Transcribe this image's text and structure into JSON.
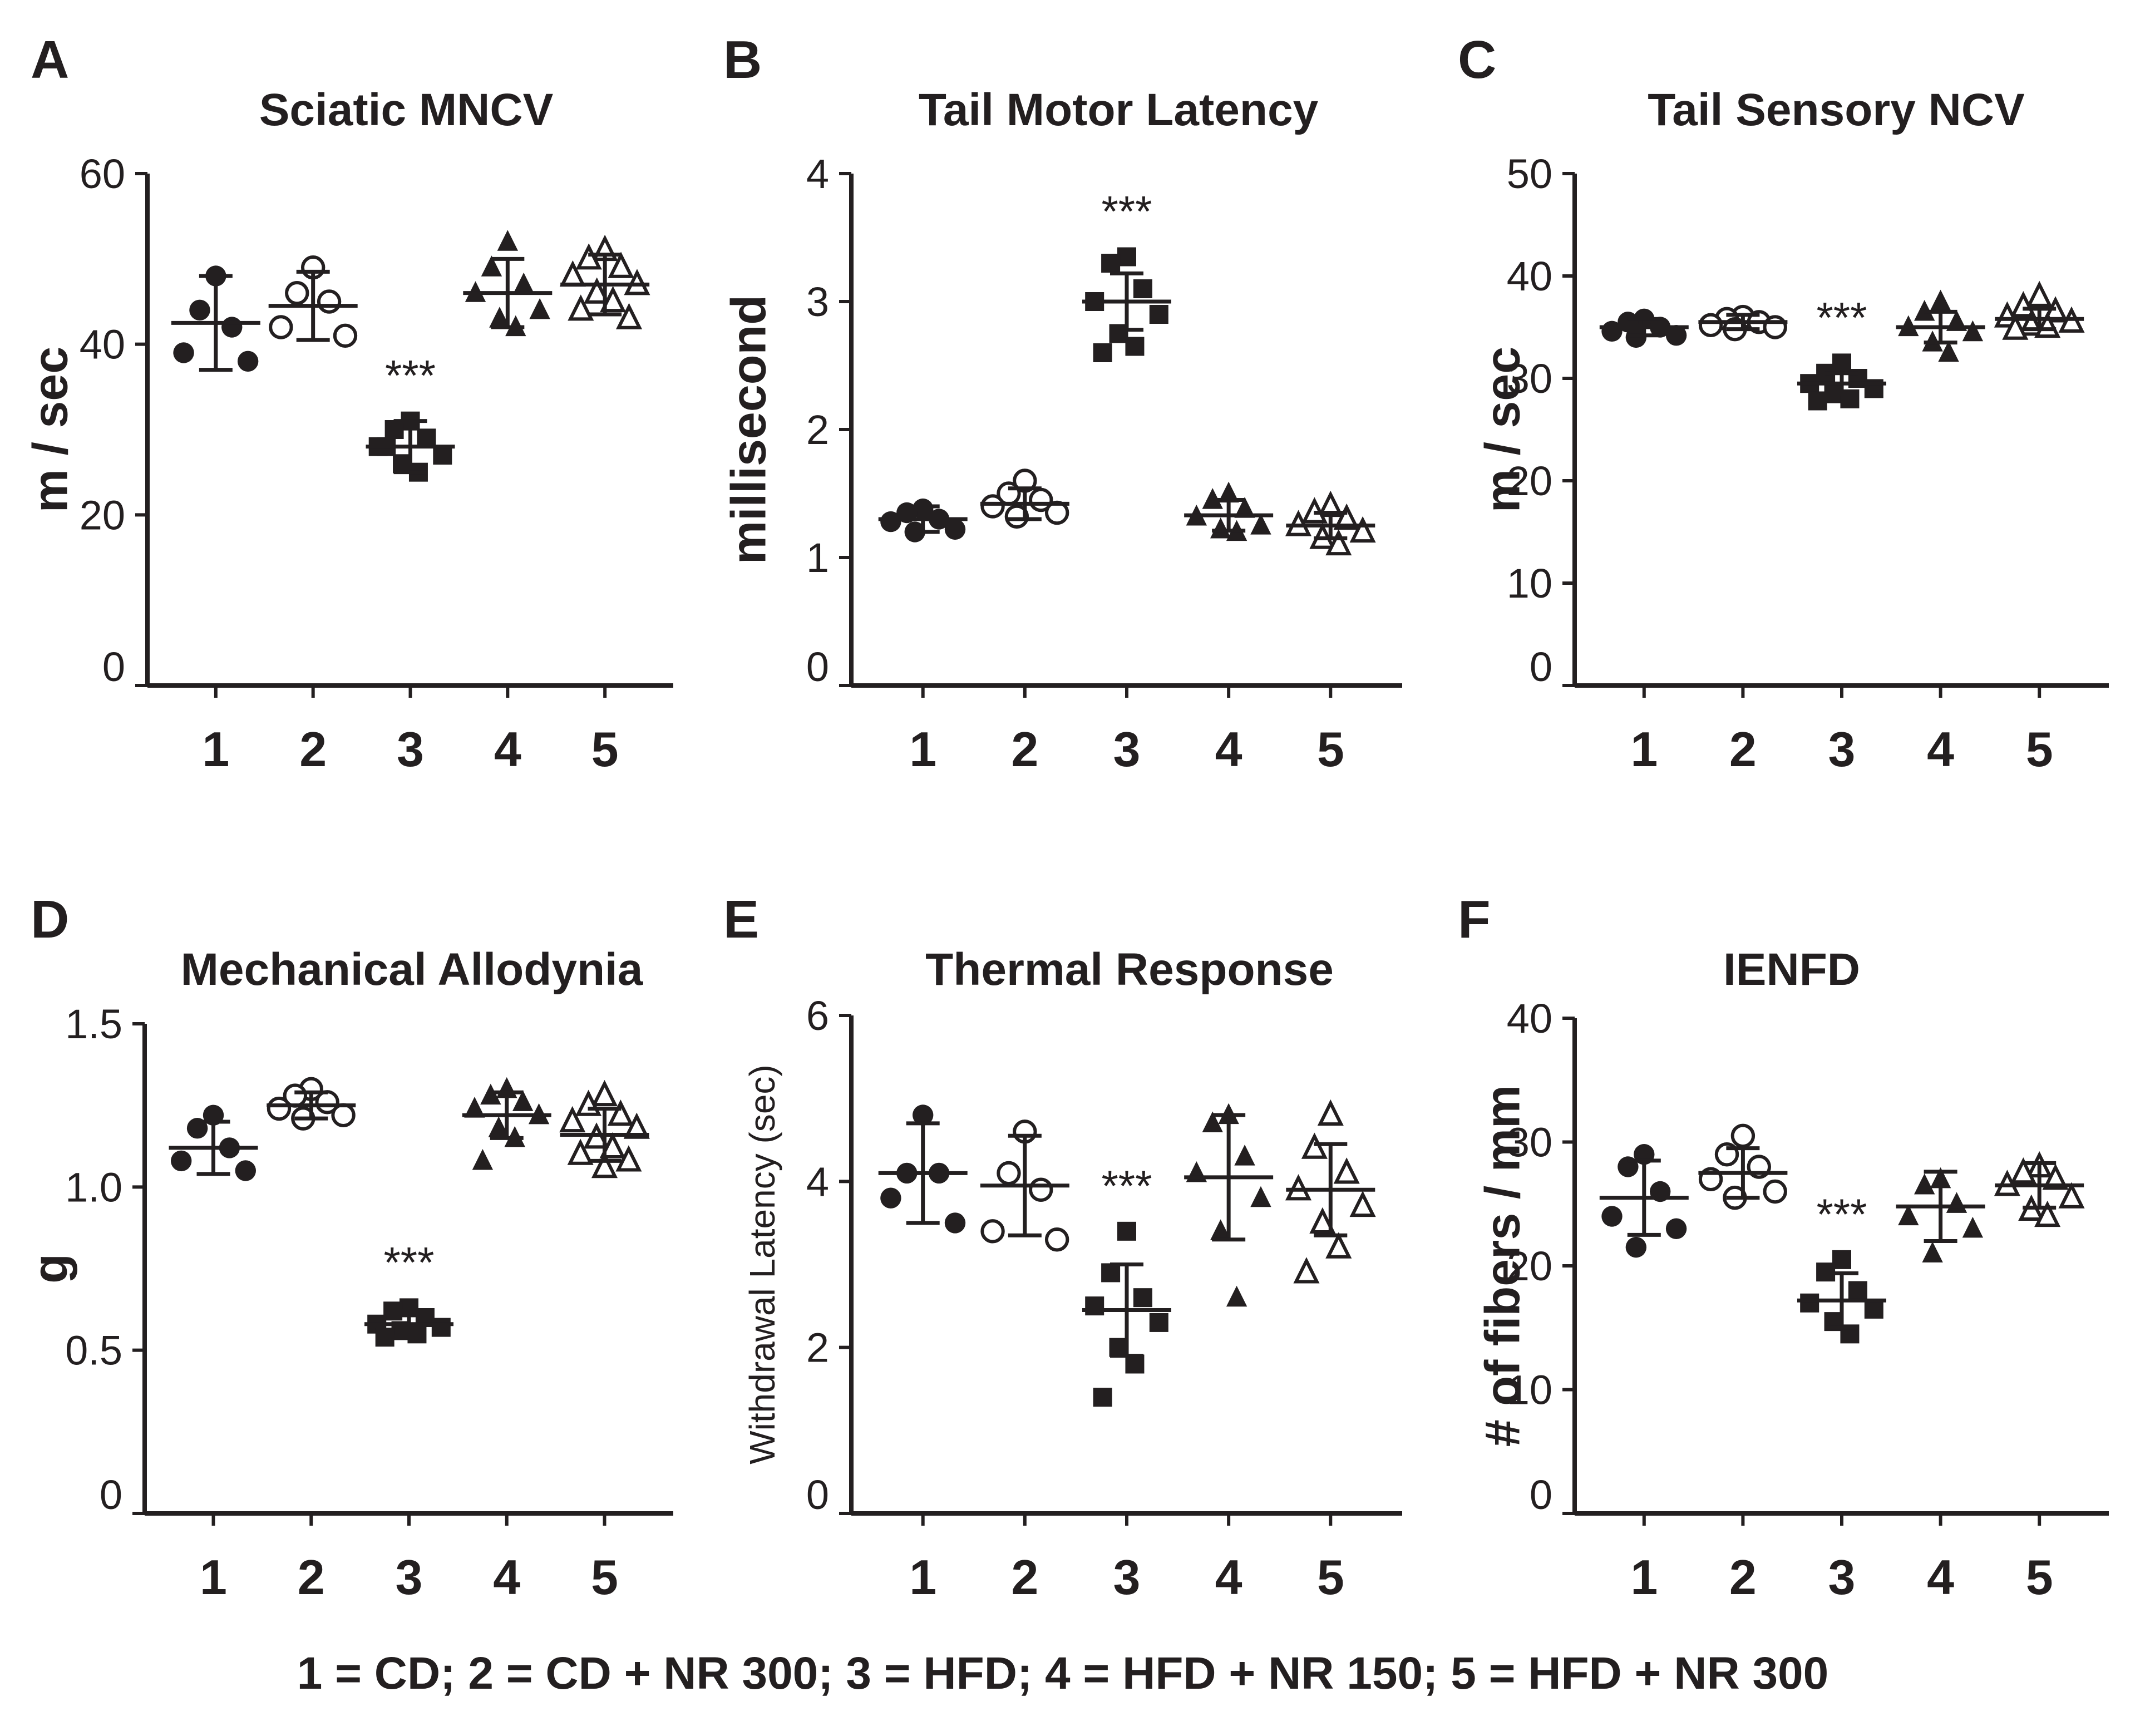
{
  "legend": "1 = CD; 2 = CD + NR 300; 3 = HFD; 4 = HFD + NR 150; 5 = HFD + NR 300",
  "chart_data": [
    {
      "id": "A",
      "type": "scatter",
      "letter": "A",
      "title": "Sciatic MNCV",
      "ylabel": "m / sec",
      "ylim": [
        0,
        60
      ],
      "yticks": [
        0,
        20,
        40,
        60
      ],
      "categories": [
        "1",
        "2",
        "3",
        "4",
        "5"
      ],
      "markers": [
        "circle",
        "circle-open",
        "square",
        "triangle",
        "triangle-open"
      ],
      "significance": {
        "group": "3",
        "label": "***"
      },
      "groups": [
        {
          "mean": 42.5,
          "sd": 5.5,
          "points": [
            48,
            44,
            42,
            39,
            38
          ]
        },
        {
          "mean": 44.5,
          "sd": 4.0,
          "points": [
            49,
            46,
            45,
            42,
            41
          ]
        },
        {
          "mean": 28.0,
          "sd": 3.0,
          "points": [
            31,
            30,
            29,
            28,
            27,
            26,
            25,
            28
          ]
        },
        {
          "mean": 46.0,
          "sd": 4.0,
          "points": [
            52,
            49,
            47,
            46,
            44,
            43,
            42
          ]
        },
        {
          "mean": 47.0,
          "sd": 3.5,
          "points": [
            51,
            50,
            49,
            48,
            47,
            46,
            45,
            44,
            43
          ]
        }
      ]
    },
    {
      "id": "B",
      "type": "scatter",
      "letter": "B",
      "title": "Tail Motor Latency",
      "ylabel": "millisecond",
      "ylim": [
        0,
        4
      ],
      "yticks": [
        0,
        1,
        2,
        3,
        4
      ],
      "categories": [
        "1",
        "2",
        "3",
        "4",
        "5"
      ],
      "markers": [
        "circle",
        "circle-open",
        "square",
        "triangle",
        "triangle-open"
      ],
      "significance": {
        "group": "3",
        "label": "***"
      },
      "groups": [
        {
          "mean": 1.3,
          "sd": 0.1,
          "points": [
            1.38,
            1.35,
            1.3,
            1.28,
            1.22,
            1.2
          ]
        },
        {
          "mean": 1.42,
          "sd": 0.12,
          "points": [
            1.6,
            1.5,
            1.45,
            1.4,
            1.35,
            1.32
          ]
        },
        {
          "mean": 3.0,
          "sd": 0.22,
          "points": [
            3.35,
            3.3,
            3.1,
            3.0,
            2.9,
            2.75,
            2.65,
            2.6
          ]
        },
        {
          "mean": 1.33,
          "sd": 0.12,
          "points": [
            1.5,
            1.45,
            1.38,
            1.32,
            1.25,
            1.22,
            1.2
          ]
        },
        {
          "mean": 1.25,
          "sd": 0.1,
          "points": [
            1.4,
            1.35,
            1.3,
            1.25,
            1.2,
            1.15,
            1.1
          ]
        }
      ]
    },
    {
      "id": "C",
      "type": "scatter",
      "letter": "C",
      "title": "Tail Sensory NCV",
      "ylabel": "m / sec",
      "ylim": [
        0,
        50
      ],
      "yticks": [
        0,
        10,
        20,
        30,
        40,
        50
      ],
      "categories": [
        "1",
        "2",
        "3",
        "4",
        "5"
      ],
      "markers": [
        "circle",
        "circle-open",
        "square",
        "triangle",
        "triangle-open"
      ],
      "significance": {
        "group": "3",
        "label": "***"
      },
      "groups": [
        {
          "mean": 35.0,
          "sd": 0.8,
          "points": [
            35.8,
            35.5,
            35.0,
            34.6,
            34.2,
            34.0
          ]
        },
        {
          "mean": 35.5,
          "sd": 0.7,
          "points": [
            36.0,
            35.8,
            35.5,
            35.2,
            35.0,
            34.8
          ]
        },
        {
          "mean": 29.5,
          "sd": 1.0,
          "points": [
            31.5,
            30.5,
            30.0,
            29.5,
            29.0,
            28.5,
            28.0,
            27.8
          ]
        },
        {
          "mean": 35.0,
          "sd": 1.5,
          "points": [
            37.5,
            36.5,
            35.5,
            35.0,
            34.5,
            33.5,
            32.5
          ]
        },
        {
          "mean": 35.8,
          "sd": 1.0,
          "points": [
            38.0,
            37.0,
            36.5,
            36.0,
            35.5,
            35.2,
            35.0,
            34.8
          ]
        }
      ]
    },
    {
      "id": "D",
      "type": "scatter",
      "letter": "D",
      "title": "Mechanical Allodynia",
      "ylabel": "g",
      "ylim": [
        0,
        1.5
      ],
      "yticks": [
        "0",
        "0.5",
        "1.0",
        "1.5"
      ],
      "categories": [
        "1",
        "2",
        "3",
        "4",
        "5"
      ],
      "markers": [
        "circle",
        "circle-open",
        "square",
        "triangle",
        "triangle-open"
      ],
      "significance": {
        "group": "3",
        "label": "***"
      },
      "groups": [
        {
          "mean": 1.12,
          "sd": 0.08,
          "points": [
            1.22,
            1.18,
            1.12,
            1.08,
            1.05
          ]
        },
        {
          "mean": 1.25,
          "sd": 0.04,
          "points": [
            1.3,
            1.28,
            1.26,
            1.24,
            1.22,
            1.21
          ]
        },
        {
          "mean": 0.58,
          "sd": 0.04,
          "points": [
            0.63,
            0.62,
            0.6,
            0.58,
            0.57,
            0.56,
            0.55,
            0.54
          ]
        },
        {
          "mean": 1.22,
          "sd": 0.07,
          "points": [
            1.3,
            1.28,
            1.26,
            1.24,
            1.22,
            1.18,
            1.15,
            1.08
          ]
        },
        {
          "mean": 1.16,
          "sd": 0.08,
          "points": [
            1.28,
            1.25,
            1.22,
            1.2,
            1.18,
            1.15,
            1.12,
            1.1,
            1.08,
            1.06
          ]
        }
      ]
    },
    {
      "id": "E",
      "type": "scatter",
      "letter": "E",
      "title": "Thermal Response",
      "ylabel": "Withdrawal Latency (sec)",
      "ylim": [
        0,
        6
      ],
      "yticks": [
        0,
        2,
        4,
        6
      ],
      "categories": [
        "1",
        "2",
        "3",
        "4",
        "5"
      ],
      "markers": [
        "circle",
        "circle-open",
        "square",
        "triangle",
        "triangle-open"
      ],
      "significance": {
        "group": "3",
        "label": "***"
      },
      "groups": [
        {
          "mean": 4.1,
          "sd": 0.6,
          "points": [
            4.8,
            4.1,
            4.1,
            3.8,
            3.5
          ]
        },
        {
          "mean": 3.95,
          "sd": 0.6,
          "points": [
            4.6,
            4.1,
            3.9,
            3.4,
            3.3
          ]
        },
        {
          "mean": 2.45,
          "sd": 0.55,
          "points": [
            3.4,
            2.9,
            2.6,
            2.5,
            2.3,
            2.0,
            1.8,
            1.4
          ]
        },
        {
          "mean": 4.05,
          "sd": 0.75,
          "points": [
            4.8,
            4.7,
            4.3,
            4.1,
            3.8,
            3.4,
            2.6
          ]
        },
        {
          "mean": 3.9,
          "sd": 0.55,
          "points": [
            4.8,
            4.4,
            4.1,
            3.9,
            3.7,
            3.5,
            3.2,
            2.9
          ]
        }
      ]
    },
    {
      "id": "F",
      "type": "scatter",
      "letter": "F",
      "title": "IENFD",
      "ylabel": "# of fibers / mm",
      "ylim": [
        0,
        40
      ],
      "yticks": [
        0,
        10,
        20,
        30,
        40
      ],
      "categories": [
        "1",
        "2",
        "3",
        "4",
        "5"
      ],
      "markers": [
        "circle",
        "circle-open",
        "square",
        "triangle",
        "triangle-open"
      ],
      "significance": {
        "group": "3",
        "label": "***"
      },
      "groups": [
        {
          "mean": 25.5,
          "sd": 3.0,
          "points": [
            29.0,
            28.0,
            26.0,
            24.0,
            23.0,
            21.5
          ]
        },
        {
          "mean": 27.5,
          "sd": 2.0,
          "points": [
            30.5,
            29.0,
            28.0,
            27.0,
            26.0,
            25.5
          ]
        },
        {
          "mean": 17.2,
          "sd": 2.2,
          "points": [
            20.5,
            19.5,
            18.0,
            17.0,
            16.5,
            15.5,
            14.5
          ]
        },
        {
          "mean": 24.8,
          "sd": 2.8,
          "points": [
            27.0,
            26.5,
            25.0,
            24.0,
            23.0,
            21.0
          ]
        },
        {
          "mean": 26.5,
          "sd": 1.8,
          "points": [
            28.0,
            27.5,
            27.0,
            26.5,
            25.5,
            24.5,
            24.0
          ]
        }
      ]
    }
  ]
}
